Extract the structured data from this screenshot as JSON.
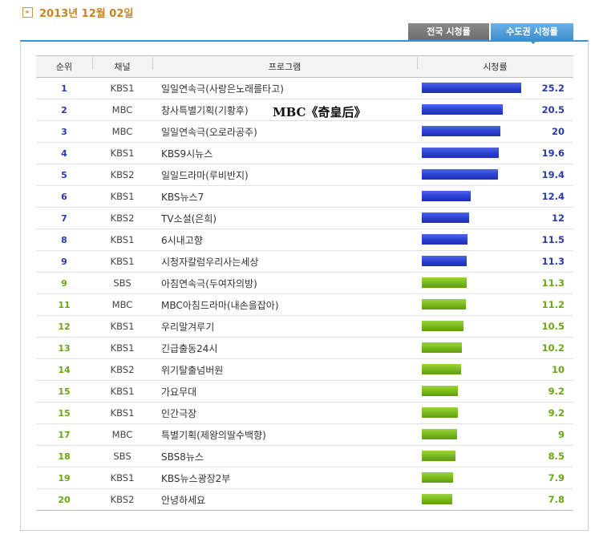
{
  "date": "2013년 12월 02일",
  "tabs": {
    "national": "전국 시청률",
    "metro": "수도권 시청률"
  },
  "overlay_text": "MBC《奇皇后》",
  "table": {
    "headers": {
      "rank": "순위",
      "channel": "채널",
      "program": "프로그램",
      "rating": "시청률"
    },
    "max_rating": 25.2,
    "rows": [
      {
        "rank": "1",
        "channel": "KBS1",
        "program": "일일연속극(사랑은노래를타고)",
        "rating": "25.2",
        "color": "blue"
      },
      {
        "rank": "2",
        "channel": "MBC",
        "program": "창사특별기획(기황후)",
        "rating": "20.5",
        "color": "blue"
      },
      {
        "rank": "3",
        "channel": "MBC",
        "program": "일일연속극(오로라공주)",
        "rating": "20",
        "color": "blue"
      },
      {
        "rank": "4",
        "channel": "KBS1",
        "program": "KBS9시뉴스",
        "rating": "19.6",
        "color": "blue"
      },
      {
        "rank": "5",
        "channel": "KBS2",
        "program": "일일드라마(루비반지)",
        "rating": "19.4",
        "color": "blue"
      },
      {
        "rank": "6",
        "channel": "KBS1",
        "program": "KBS뉴스7",
        "rating": "12.4",
        "color": "blue"
      },
      {
        "rank": "7",
        "channel": "KBS2",
        "program": "TV소설(은희)",
        "rating": "12",
        "color": "blue"
      },
      {
        "rank": "8",
        "channel": "KBS1",
        "program": "6시내고향",
        "rating": "11.5",
        "color": "blue"
      },
      {
        "rank": "9",
        "channel": "KBS1",
        "program": "시청자칼럼우리사는세상",
        "rating": "11.3",
        "color": "blue"
      },
      {
        "rank": "9",
        "channel": "SBS",
        "program": "아침연속극(두여자의방)",
        "rating": "11.3",
        "color": "green"
      },
      {
        "rank": "11",
        "channel": "MBC",
        "program": "MBC아침드라마(내손을잡아)",
        "rating": "11.2",
        "color": "green"
      },
      {
        "rank": "12",
        "channel": "KBS1",
        "program": "우리말겨루기",
        "rating": "10.5",
        "color": "green"
      },
      {
        "rank": "13",
        "channel": "KBS1",
        "program": "긴급출동24시",
        "rating": "10.2",
        "color": "green"
      },
      {
        "rank": "14",
        "channel": "KBS2",
        "program": "위기탈출넘버원",
        "rating": "10",
        "color": "green"
      },
      {
        "rank": "15",
        "channel": "KBS1",
        "program": "가요무대",
        "rating": "9.2",
        "color": "green"
      },
      {
        "rank": "15",
        "channel": "KBS1",
        "program": "인간극장",
        "rating": "9.2",
        "color": "green"
      },
      {
        "rank": "17",
        "channel": "MBC",
        "program": "특별기획(제왕의딸수백향)",
        "rating": "9",
        "color": "green"
      },
      {
        "rank": "18",
        "channel": "SBS",
        "program": "SBS8뉴스",
        "rating": "8.5",
        "color": "green"
      },
      {
        "rank": "19",
        "channel": "KBS1",
        "program": "KBS뉴스광장2부",
        "rating": "7.9",
        "color": "green"
      },
      {
        "rank": "20",
        "channel": "KBS2",
        "program": "안녕하세요",
        "rating": "7.8",
        "color": "green"
      }
    ]
  }
}
